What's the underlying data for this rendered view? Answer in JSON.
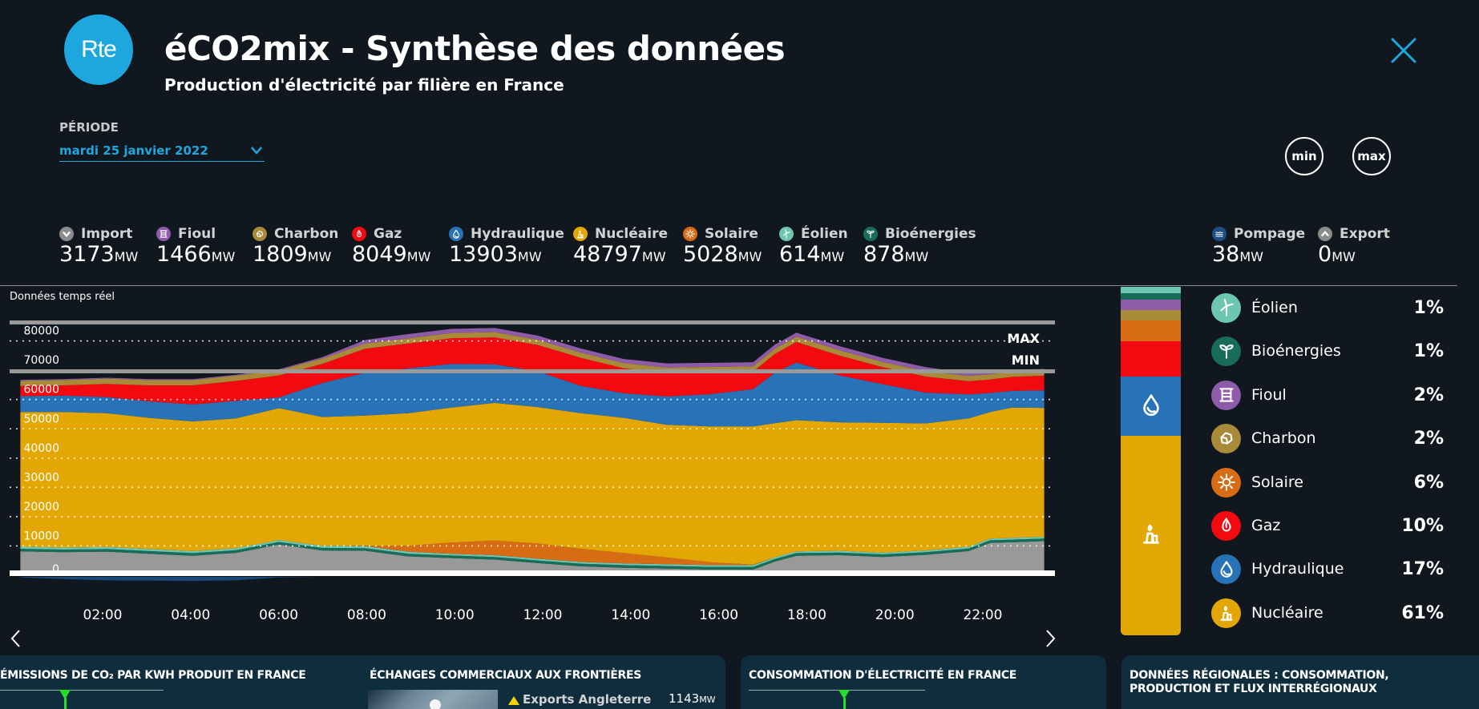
{
  "header": {
    "logo_text": "Rte",
    "title": "éCO2mix - Synthèse des données",
    "subtitle": "Production d'électricité par filière en France"
  },
  "periode": {
    "label": "PÉRIODE",
    "value": "mardi 25 janvier 2022"
  },
  "buttons": {
    "min": "min",
    "max": "max"
  },
  "unit": "MW",
  "legend": [
    {
      "key": "import",
      "label": "Import",
      "value": "3173",
      "color": "#8c8c8c",
      "icon": "chevron-down-icon"
    },
    {
      "key": "fioul",
      "label": "Fioul",
      "value": "1466",
      "color": "#8e5ba8",
      "icon": "barrel-icon"
    },
    {
      "key": "charbon",
      "label": "Charbon",
      "value": "1809",
      "color": "#a88a38",
      "icon": "coal-icon"
    },
    {
      "key": "gaz",
      "label": "Gaz",
      "value": "8049",
      "color": "#f20a10",
      "icon": "flame-icon"
    },
    {
      "key": "hydraulique",
      "label": "Hydraulique",
      "value": "13903",
      "color": "#2872b7",
      "icon": "water-drop-icon"
    },
    {
      "key": "nucleaire",
      "label": "Nucléaire",
      "value": "48797",
      "color": "#e2a704",
      "icon": "nuclear-plant-icon"
    },
    {
      "key": "solaire",
      "label": "Solaire",
      "value": "5028",
      "color": "#d86c14",
      "icon": "sun-icon"
    },
    {
      "key": "eolien",
      "label": "Éolien",
      "value": "614",
      "color": "#6dc6b0",
      "icon": "wind-turbine-icon"
    },
    {
      "key": "bioenergies",
      "label": "Bioénergies",
      "value": "878",
      "color": "#176d58",
      "icon": "sprout-icon"
    }
  ],
  "legend_right": [
    {
      "key": "pompage",
      "label": "Pompage",
      "value": "38",
      "color": "#1c4f86",
      "icon": "waves-icon"
    },
    {
      "key": "export",
      "label": "Export",
      "value": "0",
      "color": "#8c8c8c",
      "icon": "chevron-up-icon"
    }
  ],
  "realtime_label": "Données temps réel",
  "chart_data": {
    "type": "area",
    "stacked": true,
    "title": "Données temps réel",
    "xlabel": "",
    "ylabel": "MW",
    "ylim": [
      0,
      85000
    ],
    "yticks": [
      0,
      10000,
      20000,
      30000,
      40000,
      50000,
      60000,
      70000,
      80000
    ],
    "xtick_labels": [
      "02:00",
      "04:00",
      "06:00",
      "08:00",
      "10:00",
      "12:00",
      "14:00",
      "16:00",
      "18:00",
      "20:00",
      "22:00"
    ],
    "x_hours": [
      0,
      1,
      2,
      3,
      4,
      5,
      6,
      7,
      8,
      9,
      10,
      11,
      12,
      13,
      14,
      15,
      16,
      17,
      17.5,
      18,
      19,
      20,
      21,
      22,
      22.5,
      23,
      23.75
    ],
    "series": [
      {
        "name": "Import",
        "color": "#999999",
        "values": [
          6500,
          6200,
          6400,
          5700,
          5000,
          6000,
          8800,
          6800,
          6700,
          4800,
          4200,
          3700,
          2500,
          1400,
          900,
          600,
          300,
          300,
          3000,
          5000,
          5200,
          4600,
          5300,
          6600,
          9400,
          9600,
          10000
        ]
      },
      {
        "name": "Bioénergies",
        "color": "#176d58",
        "values": [
          900,
          900,
          900,
          900,
          900,
          900,
          900,
          900,
          900,
          900,
          900,
          900,
          900,
          900,
          900,
          900,
          900,
          900,
          900,
          900,
          900,
          900,
          900,
          900,
          900,
          900,
          900
        ]
      },
      {
        "name": "Éolien",
        "color": "#6dc6b0",
        "values": [
          700,
          700,
          700,
          700,
          700,
          700,
          700,
          700,
          700,
          700,
          600,
          600,
          600,
          600,
          600,
          600,
          600,
          600,
          600,
          600,
          600,
          600,
          600,
          600,
          600,
          600,
          600
        ]
      },
      {
        "name": "Solaire",
        "color": "#d86c14",
        "values": [
          0,
          0,
          0,
          0,
          0,
          0,
          0,
          0,
          100,
          2000,
          3800,
          5000,
          5200,
          4500,
          3500,
          2300,
          1000,
          200,
          0,
          0,
          0,
          0,
          0,
          0,
          0,
          0,
          0
        ]
      },
      {
        "name": "Nucléaire",
        "color": "#e2a704",
        "values": [
          46000,
          46300,
          45700,
          44800,
          44300,
          44300,
          45000,
          44000,
          44500,
          45300,
          46100,
          47000,
          46600,
          46300,
          46200,
          45300,
          46400,
          47200,
          45800,
          44800,
          43900,
          44300,
          43400,
          43800,
          43200,
          44500,
          44000
        ]
      },
      {
        "name": "Hydraulique",
        "color": "#2872b7",
        "values": [
          5400,
          5600,
          5500,
          5600,
          5800,
          6000,
          3700,
          11600,
          14600,
          15300,
          14900,
          13200,
          12200,
          9300,
          8400,
          9700,
          11000,
          12700,
          17200,
          19700,
          16000,
          13200,
          10500,
          8200,
          6500,
          5700,
          6000
        ]
      },
      {
        "name": "Gaz",
        "color": "#f20a10",
        "values": [
          3500,
          3500,
          4500,
          5500,
          6500,
          6800,
          7500,
          6500,
          8200,
          8500,
          8800,
          9200,
          9000,
          9600,
          8500,
          8100,
          7500,
          6000,
          6400,
          7000,
          6800,
          5800,
          5500,
          4500,
          4600,
          4800,
          5000
        ]
      },
      {
        "name": "Charbon",
        "color": "#a88a38",
        "values": [
          1800,
          1800,
          1800,
          1800,
          1800,
          1800,
          1800,
          1800,
          1800,
          1800,
          1800,
          1800,
          1800,
          1800,
          1800,
          1800,
          1800,
          1800,
          1800,
          1800,
          1800,
          1800,
          1800,
          1800,
          1800,
          1800,
          1800
        ]
      },
      {
        "name": "Fioul",
        "color": "#8e5ba8",
        "values": [
          300,
          300,
          300,
          300,
          300,
          300,
          300,
          500,
          1200,
          1400,
          1400,
          1400,
          1400,
          1400,
          1400,
          1400,
          1400,
          1400,
          1400,
          1400,
          1400,
          1400,
          1400,
          1000,
          700,
          600,
          500
        ]
      },
      {
        "name": "Pompage",
        "color": "#1c4f86",
        "negative": true,
        "values": [
          -200,
          -800,
          -1200,
          -1300,
          -1400,
          -1200,
          -200,
          0,
          0,
          0,
          0,
          0,
          0,
          0,
          0,
          0,
          0,
          0,
          0,
          0,
          0,
          0,
          0,
          0,
          0,
          0,
          0
        ]
      }
    ],
    "reference_lines": [
      {
        "label": "MAX",
        "value": 85000
      },
      {
        "label": "MIN",
        "value": 68500
      }
    ],
    "baseline_color": "#ffffff"
  },
  "share": {
    "stack": [
      {
        "name": "Éolien",
        "pct": 1,
        "color": "#6dc6b0"
      },
      {
        "name": "Bioénergies",
        "pct": 1,
        "color": "#176d58"
      },
      {
        "name": "Fioul",
        "pct": 2,
        "color": "#8e5ba8"
      },
      {
        "name": "Charbon",
        "pct": 2,
        "color": "#a88a38"
      },
      {
        "name": "Solaire",
        "pct": 6,
        "color": "#d86c14"
      },
      {
        "name": "Gaz",
        "pct": 10,
        "color": "#f20a10"
      },
      {
        "name": "Hydraulique",
        "pct": 17,
        "color": "#2872b7",
        "icon": "water-drop-icon"
      },
      {
        "name": "Nucléaire",
        "pct": 61,
        "color": "#e2a704",
        "icon": "nuclear-plant-icon"
      }
    ],
    "rows": [
      {
        "name": "Éolien",
        "pct_label": "1%",
        "color": "#6dc6b0",
        "icon": "wind-turbine-icon"
      },
      {
        "name": "Bioénergies",
        "pct_label": "1%",
        "color": "#176d58",
        "icon": "sprout-icon"
      },
      {
        "name": "Fioul",
        "pct_label": "2%",
        "color": "#8e5ba8",
        "icon": "barrel-icon"
      },
      {
        "name": "Charbon",
        "pct_label": "2%",
        "color": "#a88a38",
        "icon": "coal-icon"
      },
      {
        "name": "Solaire",
        "pct_label": "6%",
        "color": "#d86c14",
        "icon": "sun-icon"
      },
      {
        "name": "Gaz",
        "pct_label": "10%",
        "color": "#f20a10",
        "icon": "flame-icon"
      },
      {
        "name": "Hydraulique",
        "pct_label": "17%",
        "color": "#2872b7",
        "icon": "water-drop-icon"
      },
      {
        "name": "Nucléaire",
        "pct_label": "61%",
        "color": "#e2a704",
        "icon": "nuclear-plant-icon"
      }
    ]
  },
  "cards": [
    {
      "title": "ÉMISSIONS DE CO₂ PAR KWH PRODUIT EN FRANCE"
    },
    {
      "title": "ÉCHANGES COMMERCIAUX AUX FRONTIÈRES",
      "row_label": "Exports Angleterre",
      "row_value": "1143"
    },
    {
      "title": "CONSOMMATION D'ÉLECTRICITÉ EN FRANCE"
    },
    {
      "title": "DONNÉES RÉGIONALES : CONSOMMATION, PRODUCTION ET FLUX INTERRÉGIONAUX"
    }
  ]
}
